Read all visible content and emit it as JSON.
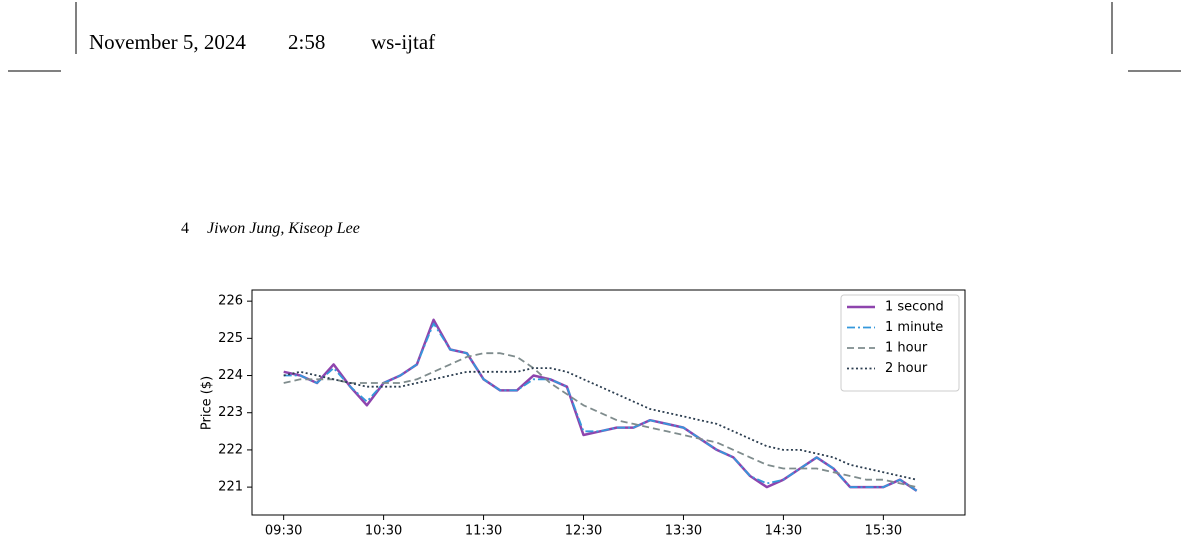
{
  "header": {
    "date": "November 5, 2024",
    "time": "2:58",
    "journal": "ws-ijtaf"
  },
  "running_head": {
    "page": "4",
    "authors": "Jiwon Jung, Kiseop Lee"
  },
  "chart_data": {
    "type": "line",
    "ylabel": "Price ($)",
    "x": [
      "09:30",
      "09:40",
      "09:50",
      "10:00",
      "10:10",
      "10:20",
      "10:30",
      "10:40",
      "10:50",
      "11:00",
      "11:10",
      "11:20",
      "11:30",
      "11:40",
      "11:50",
      "12:00",
      "12:10",
      "12:20",
      "12:30",
      "12:40",
      "12:50",
      "13:00",
      "13:10",
      "13:20",
      "13:30",
      "13:40",
      "13:50",
      "14:00",
      "14:10",
      "14:20",
      "14:30",
      "14:40",
      "14:50",
      "15:00",
      "15:10",
      "15:20",
      "15:30",
      "15:40",
      "15:50"
    ],
    "xlim": [
      "09:11",
      "16:19"
    ],
    "xticks": [
      "09:30",
      "10:30",
      "11:30",
      "12:30",
      "13:30",
      "14:30",
      "15:30"
    ],
    "ylim": [
      220.25,
      226.3
    ],
    "yticks": [
      221,
      222,
      223,
      224,
      225,
      226
    ],
    "legend": "upper right",
    "series": [
      {
        "name": "1 second",
        "color": "#8e44ad",
        "style": "solid",
        "values": [
          224.1,
          224.0,
          223.8,
          224.3,
          223.7,
          223.2,
          223.8,
          224.0,
          224.3,
          225.5,
          224.7,
          224.6,
          223.9,
          223.6,
          223.6,
          224.0,
          223.9,
          223.7,
          222.4,
          222.5,
          222.6,
          222.6,
          222.8,
          222.7,
          222.6,
          222.3,
          222.0,
          221.8,
          221.3,
          221.0,
          221.2,
          221.5,
          221.8,
          221.5,
          221.0,
          221.0,
          221.0,
          221.2,
          220.9
        ]
      },
      {
        "name": "1 minute",
        "color": "#3498db",
        "style": "dashdot",
        "values": [
          224.0,
          224.0,
          223.8,
          224.2,
          223.7,
          223.3,
          223.8,
          224.0,
          224.3,
          225.4,
          224.7,
          224.6,
          223.9,
          223.6,
          223.6,
          223.9,
          223.9,
          223.7,
          222.5,
          222.5,
          222.6,
          222.6,
          222.8,
          222.7,
          222.6,
          222.3,
          222.0,
          221.8,
          221.3,
          221.1,
          221.2,
          221.5,
          221.8,
          221.5,
          221.0,
          221.0,
          221.0,
          221.2,
          220.9
        ]
      },
      {
        "name": "1 hour",
        "color": "#7f8c8d",
        "style": "dashed",
        "values": [
          223.8,
          223.9,
          223.9,
          223.9,
          223.8,
          223.8,
          223.8,
          223.8,
          223.9,
          224.1,
          224.3,
          224.5,
          224.6,
          224.6,
          224.5,
          224.2,
          223.8,
          223.5,
          223.2,
          223.0,
          222.8,
          222.7,
          222.6,
          222.5,
          222.4,
          222.3,
          222.2,
          222.0,
          221.8,
          221.6,
          221.5,
          221.5,
          221.5,
          221.4,
          221.3,
          221.2,
          221.2,
          221.1,
          221.0
        ]
      },
      {
        "name": "2 hour",
        "color": "#2c3e50",
        "style": "dotted",
        "values": [
          224.0,
          224.1,
          224.0,
          223.9,
          223.8,
          223.7,
          223.7,
          223.7,
          223.8,
          223.9,
          224.0,
          224.1,
          224.1,
          224.1,
          224.1,
          224.2,
          224.2,
          224.1,
          223.9,
          223.7,
          223.5,
          223.3,
          223.1,
          223.0,
          222.9,
          222.8,
          222.7,
          222.5,
          222.3,
          222.1,
          222.0,
          222.0,
          221.9,
          221.8,
          221.6,
          221.5,
          221.4,
          221.3,
          221.2
        ]
      }
    ]
  }
}
